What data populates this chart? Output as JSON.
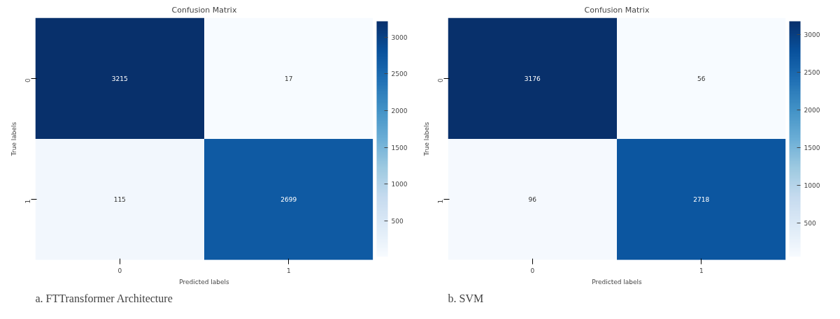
{
  "chart_data": [
    {
      "type": "heatmap",
      "title": "Confusion Matrix",
      "xlabel": "Predicted labels",
      "ylabel": "True labels",
      "categories": [
        "0",
        "1"
      ],
      "y_categories": [
        "0",
        "1"
      ],
      "cells": [
        [
          3215,
          17
        ],
        [
          115,
          2699
        ]
      ],
      "clim": [
        17,
        3215
      ],
      "cticks": [
        500,
        1000,
        1500,
        2000,
        2500,
        3000
      ],
      "data_labels": true,
      "annotations": [
        "a.          FTTransformer Architecture"
      ]
    },
    {
      "type": "heatmap",
      "title": "Confusion Matrix",
      "xlabel": "Predicted labels",
      "ylabel": "True labels",
      "categories": [
        "0",
        "1"
      ],
      "y_categories": [
        "0",
        "1"
      ],
      "cells": [
        [
          3176,
          56
        ],
        [
          96,
          2718
        ]
      ],
      "clim": [
        56,
        3176
      ],
      "cticks": [
        500,
        1000,
        1500,
        2000,
        2500,
        3000
      ],
      "data_labels": true,
      "annotations": [
        "b.          SVM"
      ]
    }
  ]
}
